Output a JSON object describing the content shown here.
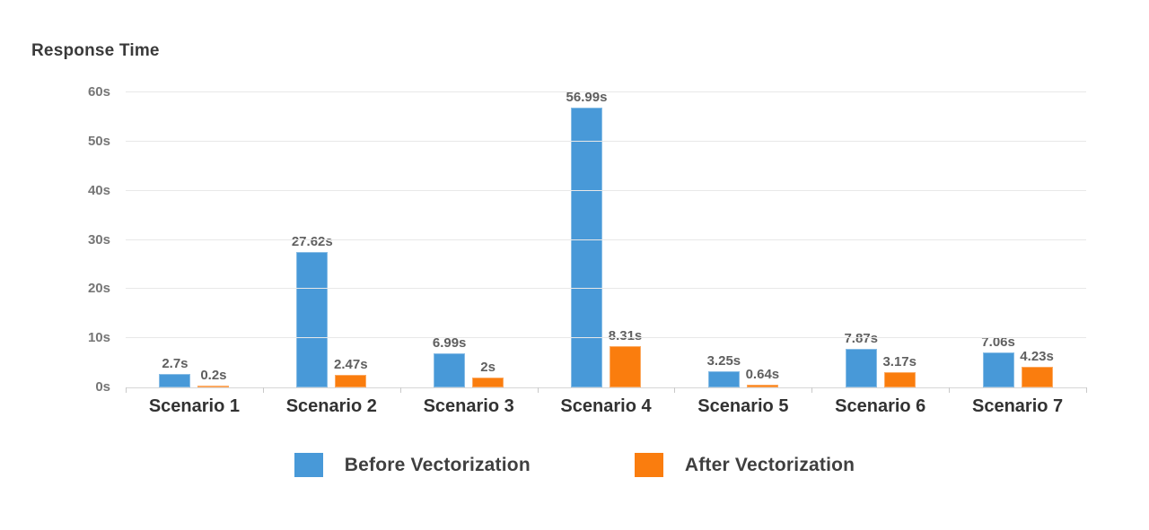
{
  "title": "Response Time",
  "colors": {
    "before_series": "#4899d8",
    "after_series": "#fa7d0e",
    "gridline": "#e8e8e8",
    "axis_line": "#d6d6d6",
    "tick": "#c9c9c9",
    "title_text": "#3a3a3a",
    "y_label_text": "#767676",
    "x_label_text": "#323232",
    "value_label_text": "#5f5f5f",
    "legend_text": "#3f3f3f"
  },
  "chart_data": {
    "type": "bar",
    "title": "Response Time",
    "categories": [
      "Scenario 1",
      "Scenario 2",
      "Scenario 3",
      "Scenario 4",
      "Scenario 5",
      "Scenario 6",
      "Scenario 7"
    ],
    "series": [
      {
        "name": "Before Vectorization",
        "color": "#4899d8",
        "values": [
          2.7,
          27.62,
          6.99,
          56.99,
          3.25,
          7.87,
          7.06
        ],
        "labels": [
          "2.7s",
          "27.62s",
          "6.99s",
          "56.99s",
          "3.25s",
          "7.87s",
          "7.06s"
        ]
      },
      {
        "name": "After Vectorization",
        "color": "#fa7d0e",
        "values": [
          0.2,
          2.47,
          2,
          8.31,
          0.64,
          3.17,
          4.23
        ],
        "labels": [
          "0.2s",
          "2.47s",
          "2s",
          "8.31s",
          "0.64s",
          "3.17s",
          "4.23s"
        ]
      }
    ],
    "xlabel": "",
    "ylabel": "",
    "ylim": [
      0,
      60
    ],
    "yticks": [
      {
        "value": 0,
        "label": "0s"
      },
      {
        "value": 10,
        "label": "10s"
      },
      {
        "value": 20,
        "label": "20s"
      },
      {
        "value": 30,
        "label": "30s"
      },
      {
        "value": 40,
        "label": "40s"
      },
      {
        "value": 50,
        "label": "50s"
      },
      {
        "value": 60,
        "label": "60s"
      }
    ],
    "grid": "horizontal",
    "legend_position": "bottom"
  }
}
